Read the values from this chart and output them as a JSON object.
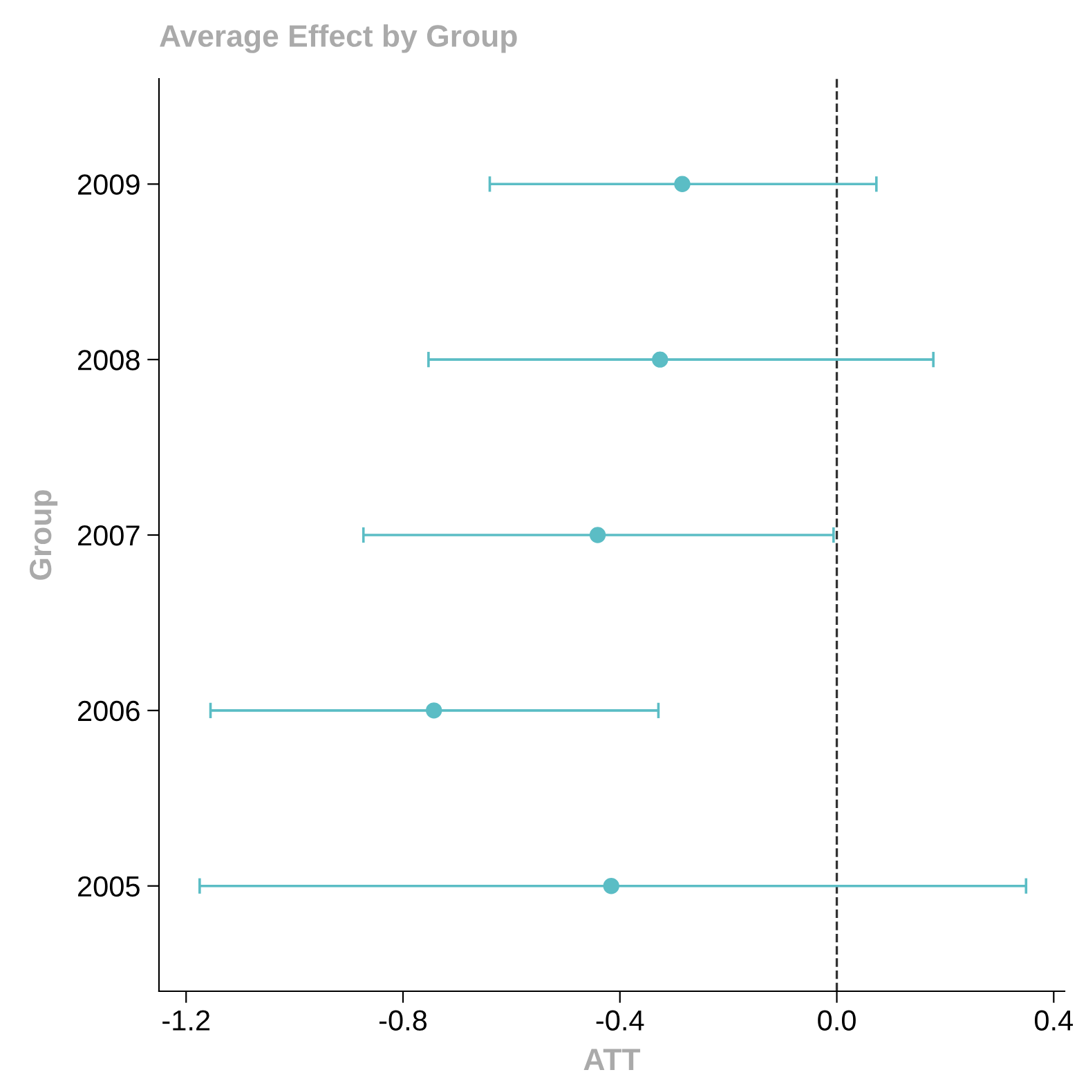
{
  "chart_data": {
    "type": "scatter",
    "orientation": "horizontal",
    "title": "Average Effect by Group",
    "xlabel": "ATT",
    "ylabel": "Group",
    "categories": [
      "2009",
      "2008",
      "2007",
      "2006",
      "2005"
    ],
    "series": [
      {
        "color": "#5bbdc5",
        "values": [
          -0.285,
          -0.326,
          -0.441,
          -0.743,
          -0.416
        ],
        "errors": [
          [
            -0.64,
            0.073
          ],
          [
            -0.753,
            0.178
          ],
          [
            -0.873,
            -0.006
          ],
          [
            -1.155,
            -0.329
          ],
          [
            -1.175,
            0.349
          ]
        ]
      }
    ],
    "xlim": [
      -1.25,
      0.42
    ],
    "xticks": [
      {
        "value": -1.2,
        "label": "-1.2"
      },
      {
        "value": -0.8,
        "label": "-0.8"
      },
      {
        "value": -0.4,
        "label": "-0.4"
      },
      {
        "value": 0,
        "label": "0.0"
      },
      {
        "value": 0.4,
        "label": "0.4"
      }
    ],
    "ref_lines": [
      {
        "axis": "x",
        "value": 0,
        "color": "#333333",
        "line_style": "dashed"
      }
    ],
    "grid": false,
    "marker": "circle"
  }
}
